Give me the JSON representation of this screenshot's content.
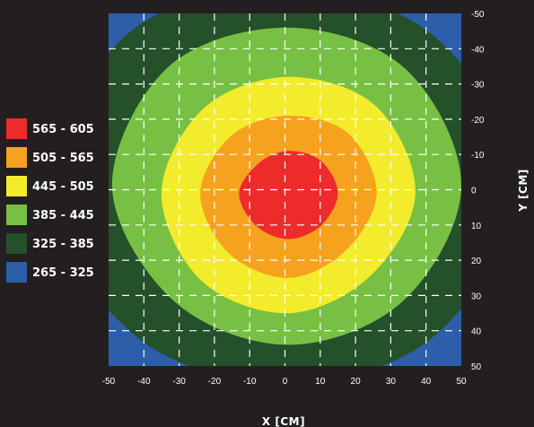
{
  "chart_data": {
    "type": "heatmap",
    "subtype": "filled-contour",
    "xlabel": "X [CM]",
    "ylabel": "Y [CM]",
    "xlim": [
      -50,
      50
    ],
    "ylim": [
      -50,
      50
    ],
    "y_axis_side": "right",
    "y_axis_direction": "top-to-bottom",
    "grid": true,
    "grid_style": "dashed white",
    "x_ticks": [
      "-50",
      "-40",
      "-30",
      "-20",
      "-10",
      "0",
      "10",
      "20",
      "30",
      "40",
      "50"
    ],
    "y_ticks": [
      "-50",
      "-40",
      "-30",
      "-20",
      "-10",
      "0",
      "10",
      "20",
      "30",
      "40",
      "50"
    ],
    "legend_position": "left",
    "legend": [
      {
        "label": "565 - 605",
        "color": "#ee2b2b"
      },
      {
        "label": "505 - 565",
        "color": "#f7a21f"
      },
      {
        "label": "445 - 505",
        "color": "#f2ec2d"
      },
      {
        "label": "385 - 445",
        "color": "#78c043"
      },
      {
        "label": "325 - 385",
        "color": "#24502a"
      },
      {
        "label": "265 - 325",
        "color": "#2d5ea9"
      }
    ],
    "levels": [
      {
        "range": "325 - 385",
        "color": "#24502a",
        "radius_cm": [
          66,
          60,
          56,
          60,
          68,
          62,
          56,
          60
        ],
        "center_cm": [
          0,
          -1
        ]
      },
      {
        "range": "385 - 445",
        "color": "#78c043",
        "radius_cm": [
          49,
          46,
          45,
          46,
          50,
          48,
          45,
          47
        ],
        "center_cm": [
          1,
          -1
        ]
      },
      {
        "range": "445 - 505",
        "color": "#f2ec2d",
        "radius_cm": [
          36,
          33,
          34,
          35,
          36,
          34,
          33,
          35
        ],
        "center_cm": [
          1,
          1
        ]
      },
      {
        "range": "505 - 565",
        "color": "#f7a21f",
        "radius_cm": [
          25,
          23,
          24,
          24,
          25,
          23,
          22,
          24
        ],
        "center_cm": [
          1,
          1
        ]
      },
      {
        "range": "565 - 605",
        "color": "#ee2b2b",
        "radius_cm": [
          14,
          13,
          13,
          13,
          14,
          12,
          12,
          13
        ],
        "center_cm": [
          1,
          1
        ]
      }
    ],
    "background_color": "#2d5ea9"
  }
}
